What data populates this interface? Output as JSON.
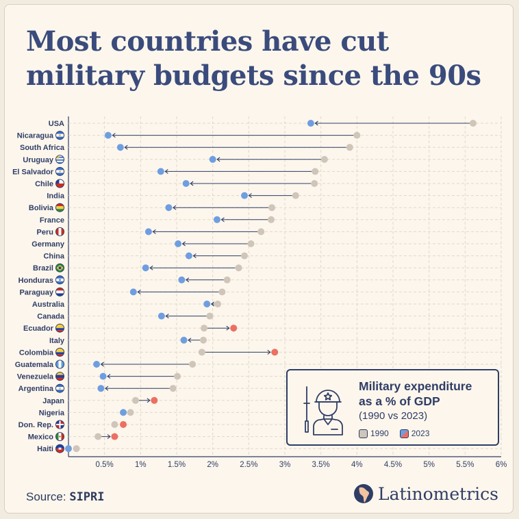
{
  "header": {
    "title_line1": "Most countries have cut",
    "title_line2": "military budgets since the 90s"
  },
  "legend": {
    "title_line1": "Military expenditure",
    "title_line2": "as a % of GDP",
    "subtitle": "(1990 vs 2023)",
    "item_1990": "1990",
    "item_2023": "2023",
    "icon": "soldier-icon"
  },
  "footer": {
    "source_label": "Source:",
    "source_name": "SIPRI",
    "brand": "Latinometrics",
    "brand_icon": "latam-map-logo"
  },
  "colors": {
    "v1990": "#cfc5b8",
    "v2023_decrease": "#6f9ee0",
    "v2023_increase": "#ec6f62",
    "arrow": "#2f3d66",
    "text": "#2f3d66",
    "grid": "#e2d8ca"
  },
  "chart_data": {
    "type": "dumbbell",
    "xlim": [
      0,
      6
    ],
    "x_ticks": [
      "0.5%",
      "1%",
      "1.5%",
      "2%",
      "2.5%",
      "3%",
      "3.5%",
      "4%",
      "4.5%",
      "5%",
      "5.5%",
      "6%"
    ],
    "series_names": [
      "1990",
      "2023"
    ],
    "rows": [
      {
        "country": "USA",
        "v1990": 5.61,
        "v2023": 3.36,
        "flag": "none"
      },
      {
        "country": "Nicaragua",
        "v1990": 4.0,
        "v2023": 0.55,
        "flag": "nicaragua"
      },
      {
        "country": "South Africa",
        "v1990": 3.9,
        "v2023": 0.72,
        "flag": "none"
      },
      {
        "country": "Uruguay",
        "v1990": 3.55,
        "v2023": 2.0,
        "flag": "uruguay"
      },
      {
        "country": "El Salvador",
        "v1990": 3.42,
        "v2023": 1.28,
        "flag": "el-salvador"
      },
      {
        "country": "Chile",
        "v1990": 3.41,
        "v2023": 1.63,
        "flag": "chile"
      },
      {
        "country": "India",
        "v1990": 3.15,
        "v2023": 2.44,
        "flag": "none"
      },
      {
        "country": "Bolivia",
        "v1990": 2.82,
        "v2023": 1.39,
        "flag": "bolivia"
      },
      {
        "country": "France",
        "v1990": 2.81,
        "v2023": 2.06,
        "flag": "none"
      },
      {
        "country": "Peru",
        "v1990": 2.67,
        "v2023": 1.11,
        "flag": "peru"
      },
      {
        "country": "Germany",
        "v1990": 2.53,
        "v2023": 1.52,
        "flag": "none"
      },
      {
        "country": "China",
        "v1990": 2.44,
        "v2023": 1.67,
        "flag": "none"
      },
      {
        "country": "Brazil",
        "v1990": 2.36,
        "v2023": 1.07,
        "flag": "brazil"
      },
      {
        "country": "Honduras",
        "v1990": 2.2,
        "v2023": 1.57,
        "flag": "honduras"
      },
      {
        "country": "Paraguay",
        "v1990": 2.13,
        "v2023": 0.9,
        "flag": "paraguay"
      },
      {
        "country": "Australia",
        "v1990": 2.07,
        "v2023": 1.92,
        "flag": "none"
      },
      {
        "country": "Canada",
        "v1990": 1.96,
        "v2023": 1.29,
        "flag": "none"
      },
      {
        "country": "Ecuador",
        "v1990": 1.88,
        "v2023": 2.29,
        "flag": "ecuador"
      },
      {
        "country": "Italy",
        "v1990": 1.87,
        "v2023": 1.6,
        "flag": "none"
      },
      {
        "country": "Colombia",
        "v1990": 1.85,
        "v2023": 2.86,
        "flag": "colombia"
      },
      {
        "country": "Guatemala",
        "v1990": 1.72,
        "v2023": 0.39,
        "flag": "guatemala"
      },
      {
        "country": "Venezuela",
        "v1990": 1.51,
        "v2023": 0.48,
        "flag": "venezuela"
      },
      {
        "country": "Argentina",
        "v1990": 1.45,
        "v2023": 0.45,
        "flag": "argentina"
      },
      {
        "country": "Japan",
        "v1990": 0.93,
        "v2023": 1.19,
        "flag": "none"
      },
      {
        "country": "Nigeria",
        "v1990": 0.86,
        "v2023": 0.76,
        "flag": "none"
      },
      {
        "country": "Don. Rep.",
        "v1990": 0.64,
        "v2023": 0.76,
        "flag": "dominican-republic"
      },
      {
        "country": "Mexico",
        "v1990": 0.41,
        "v2023": 0.64,
        "flag": "mexico"
      },
      {
        "country": "Haiti",
        "v1990": 0.11,
        "v2023": 0.0,
        "flag": "haiti"
      }
    ]
  }
}
